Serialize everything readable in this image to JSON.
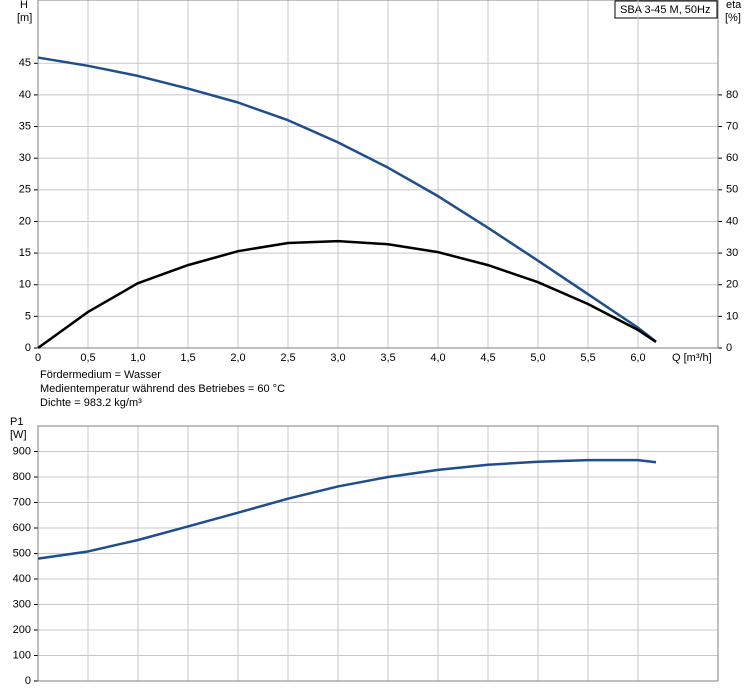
{
  "chart_data": [
    {
      "type": "line",
      "label": "SBA 3-45 M, 50Hz",
      "y_label": "H",
      "y_unit": "[m]",
      "y2_label": "eta",
      "y2_unit": "[%]",
      "x_label": "Q [m³/h]",
      "notes": [
        "Fördermedium = Wasser",
        "Medientemperatur während des Betriebes = 60 °C",
        "Dichte = 983.2 kg/m³"
      ],
      "x": [
        0,
        0.5,
        1.0,
        1.5,
        2.0,
        2.5,
        3.0,
        3.5,
        4.0,
        4.5,
        5.0,
        5.5,
        6.0,
        6.18
      ],
      "series": [
        {
          "name": "H",
          "color": "#1f4e8c",
          "values": [
            45.9,
            44.6,
            43.0,
            41.0,
            38.8,
            36.0,
            32.5,
            28.5,
            24.0,
            19.0,
            13.8,
            8.5,
            3.2,
            1.0
          ]
        },
        {
          "name": "eta",
          "color": "#000000",
          "axis": "y2",
          "values": [
            0,
            11.4,
            20.5,
            26.2,
            30.6,
            33.2,
            33.8,
            32.8,
            30.3,
            26.2,
            20.8,
            13.9,
            5.7,
            1.9
          ]
        }
      ],
      "xlim": [
        0,
        6.8
      ],
      "xticks": [
        0,
        {
          "value": 0.5,
          "label": "0,5"
        },
        {
          "value": 1,
          "label": "1,0"
        },
        {
          "value": 1.5,
          "label": "1,5"
        },
        {
          "value": 2,
          "label": "2,0"
        },
        {
          "value": 2.5,
          "label": "2,5"
        },
        {
          "value": 3,
          "label": "3,0"
        },
        {
          "value": 3.5,
          "label": "3,5"
        },
        {
          "value": 4,
          "label": "4,0"
        },
        {
          "value": 4.5,
          "label": "4,5"
        },
        {
          "value": 5,
          "label": "5,0"
        },
        {
          "value": 5.5,
          "label": "5,5"
        },
        {
          "value": 6,
          "label": "6,0"
        }
      ],
      "ylim": [
        0,
        55
      ],
      "yticks": [
        0,
        5,
        10,
        15,
        20,
        25,
        30,
        35,
        40,
        45
      ],
      "y2lim": [
        0,
        110
      ],
      "y2ticks": [
        0,
        10,
        20,
        30,
        40,
        50,
        60,
        70,
        80
      ],
      "grid": true
    },
    {
      "type": "line",
      "y_label": "P1",
      "y_unit": "[W]",
      "x": [
        0,
        0.5,
        1.0,
        1.5,
        2.0,
        2.5,
        3.0,
        3.5,
        4.0,
        4.5,
        5.0,
        5.5,
        6.0,
        6.18
      ],
      "series": [
        {
          "name": "P1",
          "color": "#1f4e8c",
          "values": [
            480,
            508,
            553,
            606,
            660,
            715,
            763,
            800,
            828,
            848,
            860,
            866,
            866,
            858
          ]
        }
      ],
      "xlim": [
        0,
        6.8
      ],
      "xticks": [
        0,
        0.5,
        1,
        1.5,
        2,
        2.5,
        3,
        3.5,
        4,
        4.5,
        5,
        5.5,
        6
      ],
      "ylim": [
        0,
        1000
      ],
      "yticks": [
        0,
        100,
        200,
        300,
        400,
        500,
        600,
        700,
        800,
        900
      ],
      "grid": true
    }
  ]
}
